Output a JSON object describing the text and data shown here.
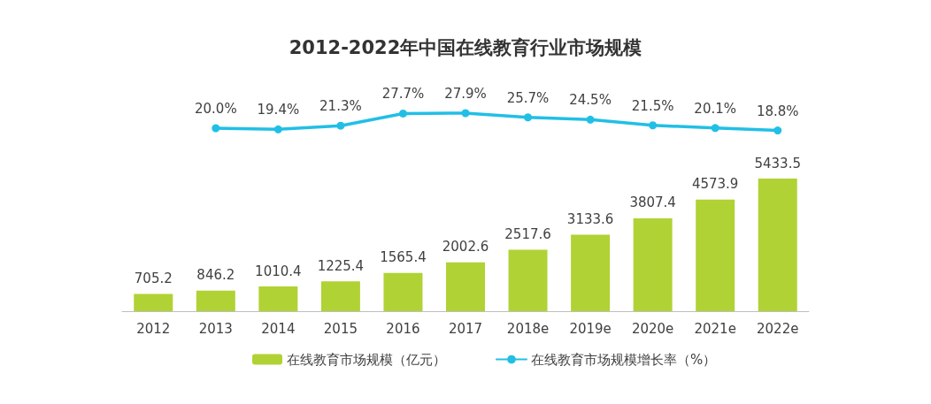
{
  "chart_data": [
    {
      "type": "line",
      "title": "2012-2022年中国在线教育行业市场规模",
      "categories": [
        null,
        null,
        null,
        null,
        null,
        null,
        null,
        null,
        null,
        null,
        null
      ],
      "series": [
        {
          "name": "在线教育市场规模增长率（%）",
          "color": "#21bfe6",
          "values": [
            null,
            20.0,
            19.4,
            21.3,
            27.7,
            27.9,
            25.7,
            24.5,
            21.5,
            20.1,
            18.8
          ],
          "value_labels": [
            null,
            "20.0%",
            "19.4%",
            "21.3%",
            "27.7%",
            "27.9%",
            "25.7%",
            "24.5%",
            "21.5%",
            "20.1%",
            "18.8%"
          ]
        }
      ],
      "tick_labels": false,
      "legend": "bottom",
      "marker": "circle",
      "line_style": "solid"
    },
    {
      "type": "bar",
      "categories": [
        "2012",
        "2013",
        "2014",
        "2015",
        "2016",
        "2017",
        "2018e",
        "2019e",
        "2020e",
        "2021e",
        "2022e"
      ],
      "series": [
        {
          "name": "在线教育市场规模（亿元）",
          "color": "#b0d235",
          "values": [
            705.2,
            846.2,
            1010.4,
            1225.4,
            1565.4,
            2002.6,
            2517.6,
            3133.6,
            3807.4,
            4573.9,
            5433.5
          ],
          "value_labels": [
            "705.2",
            "846.2",
            "1010.4",
            "1225.4",
            "1565.4",
            "2002.6",
            "2517.6",
            "3133.6",
            "3807.4",
            "4573.9",
            "5433.5"
          ]
        }
      ],
      "tick_labels": "x",
      "legend": "bottom"
    }
  ]
}
